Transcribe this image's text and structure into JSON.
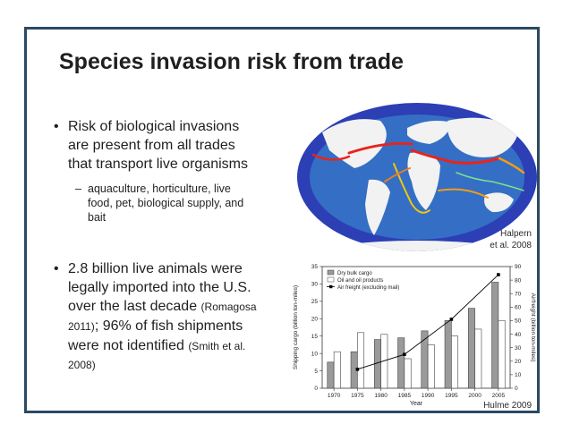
{
  "slide": {
    "title": "Species invasion risk from trade",
    "bullet1": {
      "lines": [
        "Risk of biological invasions",
        "are present from all trades",
        "that transport live organisms"
      ],
      "sub_lines": [
        "aquaculture,  horticulture, live",
        "food, pet, biological supply, and",
        "bait"
      ]
    },
    "bullet2": {
      "line1": "2.8 billion live animals were",
      "line2": "legally imported into the U.S.",
      "line3_main": "over the last decade ",
      "line3_cite": "(Romagosa",
      "line4_cite": "2011)",
      "line4_main": "; 96% of fish shipments",
      "line5_main": "were not identified ",
      "line5_cite": "(Smith et al.",
      "line6_cite": "2008)"
    },
    "map_credit": [
      "Halpern",
      "et al. 2008"
    ],
    "chart_credit": "Hulme 2009",
    "colors": {
      "frame": "#2b4a63",
      "ocean": "#2c3fb5",
      "land": "#f2f2f2"
    }
  },
  "chart_data": {
    "type": "bar",
    "xlabel": "Year",
    "ylabel": "Shipping cargo (billion ton-miles)",
    "y2label": "Airfreight (billion ton-miles)",
    "categories": [
      "1970",
      "1975",
      "1980",
      "1985",
      "1990",
      "1995",
      "2000",
      "2005"
    ],
    "ylim": [
      0,
      35
    ],
    "y2lim": [
      0,
      90
    ],
    "yticks": [
      "0",
      "5",
      "10",
      "15",
      "20",
      "25",
      "30",
      "35"
    ],
    "y2ticks": [
      "0",
      "10",
      "20",
      "30",
      "40",
      "50",
      "60",
      "70",
      "80",
      "90"
    ],
    "legend_position": "top-left",
    "series": [
      {
        "name": "Dry bulk cargo",
        "kind": "bar",
        "color": "#9a9a9a",
        "values": [
          7.5,
          10.5,
          14,
          14.5,
          16.5,
          19.5,
          23,
          30.5
        ]
      },
      {
        "name": "Oil and oil products",
        "kind": "bar",
        "color": "#ffffff",
        "values": [
          10.5,
          16,
          15.5,
          8.5,
          12.5,
          15,
          17,
          19.5
        ]
      },
      {
        "name": "Air freight (excluding mail)",
        "kind": "line",
        "axis": "right",
        "color": "#000000",
        "x": [
          "1975",
          "1985",
          "1995",
          "2005"
        ],
        "values": [
          14,
          25,
          51,
          84
        ]
      }
    ]
  }
}
